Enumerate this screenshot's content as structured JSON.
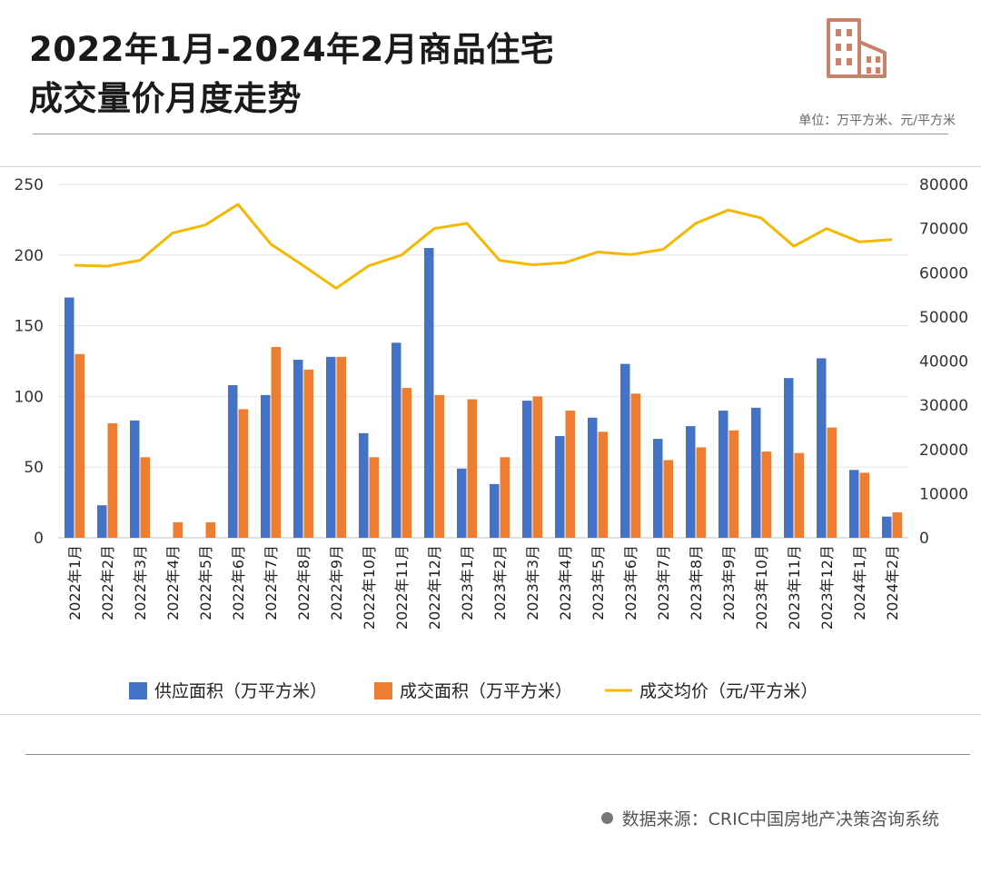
{
  "header": {
    "title_line1": "2022年1月-2024年2月商品住宅",
    "title_line2": "成交量价月度走势",
    "unit": "单位：万平方米、元/平方米"
  },
  "footer": {
    "source": "数据来源：CRIC中国房地产决策咨询系统"
  },
  "colors": {
    "supply": "#4472C4",
    "deal": "#ED7D31",
    "price": "#F5B800",
    "logo": "#C8826A"
  },
  "chart_data": {
    "type": "bar",
    "title": "2022年1月-2024年2月商品住宅成交量价月度走势",
    "categories": [
      "2022年1月",
      "2022年2月",
      "2022年3月",
      "2022年4月",
      "2022年5月",
      "2022年6月",
      "2022年7月",
      "2022年8月",
      "2022年9月",
      "2022年10月",
      "2022年11月",
      "2022年12月",
      "2023年1月",
      "2023年2月",
      "2023年3月",
      "2023年4月",
      "2023年5月",
      "2023年6月",
      "2023年7月",
      "2023年8月",
      "2023年9月",
      "2023年10月",
      "2023年11月",
      "2023年12月",
      "2024年1月",
      "2024年2月"
    ],
    "series": [
      {
        "name": "供应面积（万平方米）",
        "kind": "bar",
        "axis": "left",
        "values": [
          170,
          23,
          83,
          0,
          0,
          108,
          101,
          126,
          128,
          74,
          138,
          205,
          49,
          38,
          97,
          72,
          85,
          123,
          70,
          79,
          90,
          92,
          113,
          127,
          48,
          15
        ]
      },
      {
        "name": "成交面积（万平方米）",
        "kind": "bar",
        "axis": "left",
        "values": [
          130,
          81,
          57,
          11,
          11,
          91,
          135,
          119,
          128,
          57,
          106,
          101,
          98,
          57,
          100,
          90,
          75,
          102,
          55,
          64,
          76,
          61,
          60,
          78,
          46,
          18
        ]
      },
      {
        "name": "成交均价（元/平方米）",
        "kind": "line",
        "axis": "right",
        "values": [
          61700,
          61500,
          62800,
          69000,
          70800,
          75500,
          66500,
          61600,
          56500,
          61600,
          64000,
          70000,
          71200,
          62800,
          61800,
          62300,
          64700,
          64100,
          65300,
          71200,
          74200,
          72400,
          66000,
          70000,
          67000,
          67500
        ]
      }
    ],
    "left_axis": {
      "min": 0,
      "max": 250,
      "ticks": [
        0,
        50,
        100,
        150,
        200,
        250
      ]
    },
    "right_axis": {
      "min": 0,
      "max": 80000,
      "ticks": [
        0,
        10000,
        20000,
        30000,
        40000,
        50000,
        60000,
        70000,
        80000
      ]
    },
    "legend_position": "bottom",
    "grid": true
  }
}
